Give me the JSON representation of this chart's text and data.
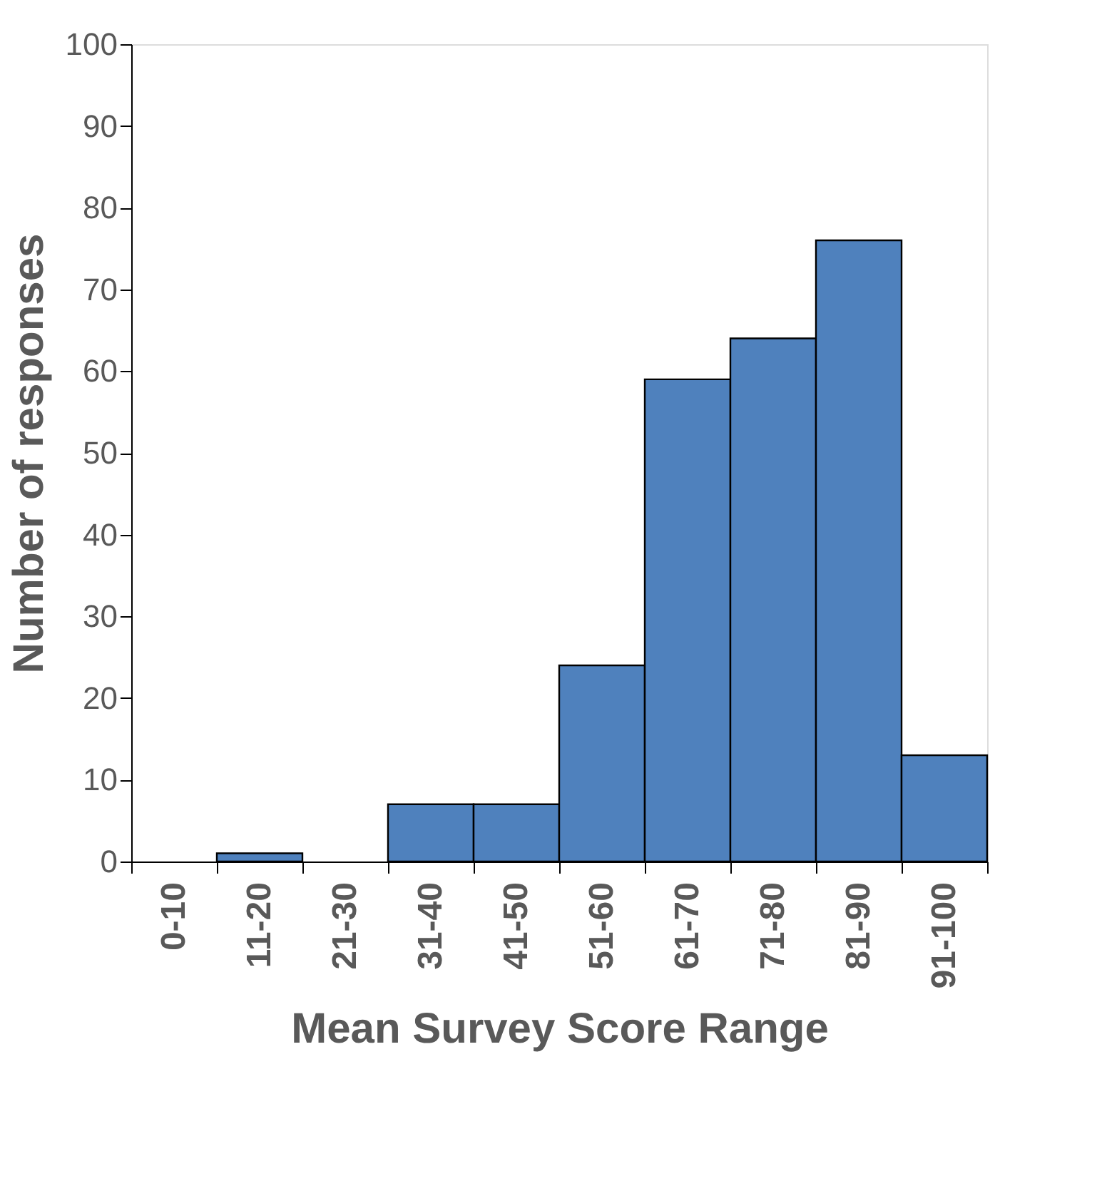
{
  "chart_data": {
    "type": "bar",
    "categories": [
      "0-10",
      "11-20",
      "21-30",
      "31-40",
      "41-50",
      "51-60",
      "61-70",
      "71-80",
      "81-90",
      "91-100"
    ],
    "values": [
      0,
      1,
      0,
      7,
      7,
      24,
      59,
      64,
      76,
      13
    ],
    "color": "#4f81bd",
    "xlabel": "Mean Survey Score Range",
    "ylabel": "Number of responses",
    "ylim": [
      0,
      100
    ],
    "yticks": [
      0,
      10,
      20,
      30,
      40,
      50,
      60,
      70,
      80,
      90,
      100
    ],
    "grid": false
  }
}
